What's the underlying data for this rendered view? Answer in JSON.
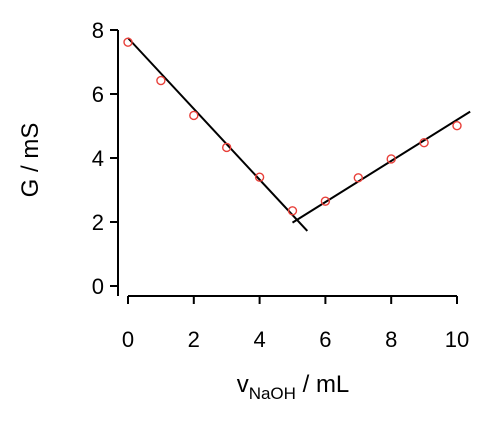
{
  "chart_data": {
    "type": "scatter",
    "title": "",
    "xlabel": {
      "main": "v",
      "subscript": "NaOH",
      "unit": " / mL"
    },
    "ylabel": "G / mS",
    "xlim": [
      0,
      10
    ],
    "ylim": [
      0,
      8
    ],
    "xticks": [
      0,
      2,
      4,
      6,
      8,
      10
    ],
    "yticks": [
      0,
      2,
      4,
      6,
      8
    ],
    "grid": false,
    "legend": "none",
    "series": [
      {
        "type": "scatter",
        "color": "#e8403a",
        "marker": "open-circle",
        "x": [
          0,
          1,
          2,
          3,
          4,
          5,
          6,
          7,
          8,
          9,
          10
        ],
        "y": [
          7.62,
          6.42,
          5.33,
          4.33,
          3.4,
          2.35,
          2.65,
          3.38,
          3.97,
          4.48,
          5.01
        ]
      }
    ],
    "fit_lines": [
      {
        "color": "#000000",
        "x": [
          0,
          5.45
        ],
        "y": [
          7.75,
          1.72
        ]
      },
      {
        "color": "#000000",
        "x": [
          5.0,
          10.4
        ],
        "y": [
          1.98,
          5.45
        ]
      }
    ]
  }
}
